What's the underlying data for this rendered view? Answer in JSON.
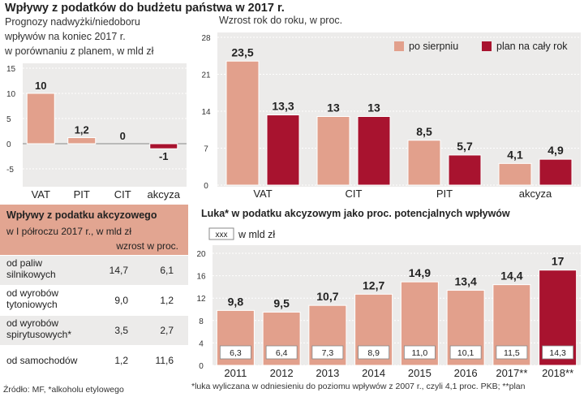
{
  "title": "Wpływy z podatków do budżetu państwa w 2017 r.",
  "colors": {
    "light": "#e2a08c",
    "dark": "#a8132f",
    "panel": "#ecebea",
    "header": "#e2a591"
  },
  "left_chart": {
    "subtitle": [
      "Prognozy nadwyżki/niedoboru",
      "wpływów na koniec 2017 r.",
      "w porównaniu z planem, w mld zł"
    ]
  },
  "right_chart": {
    "subtitle": "Wzrost rok do roku, w proc.",
    "legend": [
      "po sierpniu",
      "plan na cały rok"
    ]
  },
  "bottom_chart": {
    "title": "Luka* w podatku akcyzowym jako proc. potencjalnych wpływów",
    "legend_box": "xxx",
    "legend_label": "w mld zł"
  },
  "table": {
    "title": "Wpływy z podatku akcyzowego",
    "subtitle": "w I półroczu 2017 r., w mld zł",
    "col_header": "wzrost w proc.",
    "rows": [
      {
        "label": [
          "od paliw",
          "silnikowych"
        ],
        "v1": "14,7",
        "v2": "6,1"
      },
      {
        "label": [
          "od wyrobów",
          "tytoniowych"
        ],
        "v1": "9,0",
        "v2": "1,2"
      },
      {
        "label": [
          "od wyrobów",
          "spirytusowych*"
        ],
        "v1": "3,5",
        "v2": "2,7"
      },
      {
        "label": [
          "od samochodów"
        ],
        "v1": "1,2",
        "v2": "11,6"
      }
    ]
  },
  "source": "Źródło: MF, *alkoholu etylowego",
  "footnote": "*luka wyliczana w odniesieniu do poziomu wpływów z 2007 r., czyli 4,1 proc. PKB; **plan",
  "chart_data": [
    {
      "type": "bar",
      "categories": [
        "VAT",
        "PIT",
        "CIT",
        "akcyza"
      ],
      "values": [
        10,
        1.2,
        0,
        -1
      ],
      "labels": [
        "10",
        "1,2",
        "0",
        "-1"
      ],
      "ylim": [
        -5,
        15
      ],
      "yticks": [
        -5,
        0,
        5,
        10,
        15
      ]
    },
    {
      "type": "bar",
      "categories": [
        "VAT",
        "CIT",
        "PIT",
        "akcyza"
      ],
      "series": [
        {
          "name": "po sierpniu",
          "values": [
            23.5,
            13,
            8.5,
            4.1
          ],
          "labels": [
            "23,5",
            "13",
            "8,5",
            "4,1"
          ]
        },
        {
          "name": "plan na cały rok",
          "values": [
            13.3,
            13,
            5.7,
            4.9
          ],
          "labels": [
            "13,3",
            "13",
            "5,7",
            "4,9"
          ]
        }
      ],
      "ylim": [
        0,
        28
      ],
      "yticks": [
        0,
        7,
        14,
        21,
        28
      ]
    },
    {
      "type": "bar",
      "categories": [
        "2011",
        "2012",
        "2013",
        "2014",
        "2015",
        "2016",
        "2017**",
        "2018**"
      ],
      "values": [
        9.8,
        9.5,
        10.7,
        12.7,
        14.9,
        13.4,
        14.4,
        17
      ],
      "labels": [
        "9,8",
        "9,5",
        "10,7",
        "12,7",
        "14,9",
        "13,4",
        "14,4",
        "17"
      ],
      "amounts": [
        "6,3",
        "6,4",
        "7,3",
        "8,9",
        "11,0",
        "10,1",
        "11,5",
        "14,3"
      ],
      "ylim": [
        0,
        20
      ],
      "yticks": [
        0,
        4,
        8,
        12,
        16,
        20
      ]
    }
  ]
}
